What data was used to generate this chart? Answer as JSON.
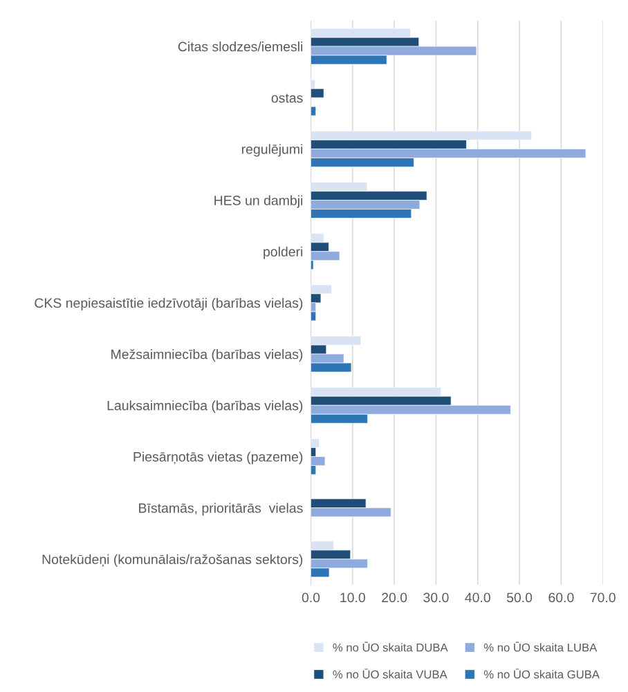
{
  "chart_data": {
    "type": "bar",
    "orientation": "horizontal",
    "categories": [
      "Citas slodzes/iemesli",
      "ostas",
      "regulējumi",
      "HES un dambji",
      "polderi",
      "CKS nepiesaistītie iedzīvotāji (barības vielas)",
      "Mežsaimniecība (barības vielas)",
      "Lauksaimniecība (barības vielas)",
      "Piesārņotās vietas (pazeme)",
      "Bīstamās, prioritārās  vielas",
      "Notekūdeņi (komunālais/ražošanas sektors)"
    ],
    "series": [
      {
        "name": "% no ŪO skaita DUBA",
        "color": "#dae3f3",
        "values": [
          23.9,
          1.0,
          52.9,
          13.5,
          3.1,
          5.0,
          12.0,
          31.2,
          2.0,
          null,
          5.5
        ]
      },
      {
        "name": "% no ŪO skaita VUBA",
        "color": "#1f4e79",
        "values": [
          25.9,
          3.1,
          37.3,
          27.8,
          4.3,
          2.4,
          3.7,
          33.6,
          1.2,
          13.2,
          9.5
        ]
      },
      {
        "name": "% no ŪO skaita LUBA",
        "color": "#8faadc",
        "values": [
          39.7,
          null,
          65.9,
          26.1,
          6.9,
          1.2,
          7.9,
          47.9,
          3.4,
          19.2,
          13.6
        ]
      },
      {
        "name": "% no ŪO skaita GUBA",
        "color": "#2e75b6",
        "values": [
          18.2,
          1.2,
          24.7,
          24.1,
          0.6,
          1.2,
          9.7,
          13.6,
          1.2,
          null,
          4.4
        ]
      }
    ],
    "xlim": [
      0,
      70
    ],
    "xticks": [
      {
        "value": 0,
        "label": "0.0"
      },
      {
        "value": 10,
        "label": "10.0"
      },
      {
        "value": 20,
        "label": "20.0"
      },
      {
        "value": 30,
        "label": "30.0"
      },
      {
        "value": 40,
        "label": "40.0"
      },
      {
        "value": 50,
        "label": "50.0"
      },
      {
        "value": 60,
        "label": "60.0"
      },
      {
        "value": 70,
        "label": "70.0"
      }
    ],
    "grid": "x",
    "legend": "bottom"
  }
}
